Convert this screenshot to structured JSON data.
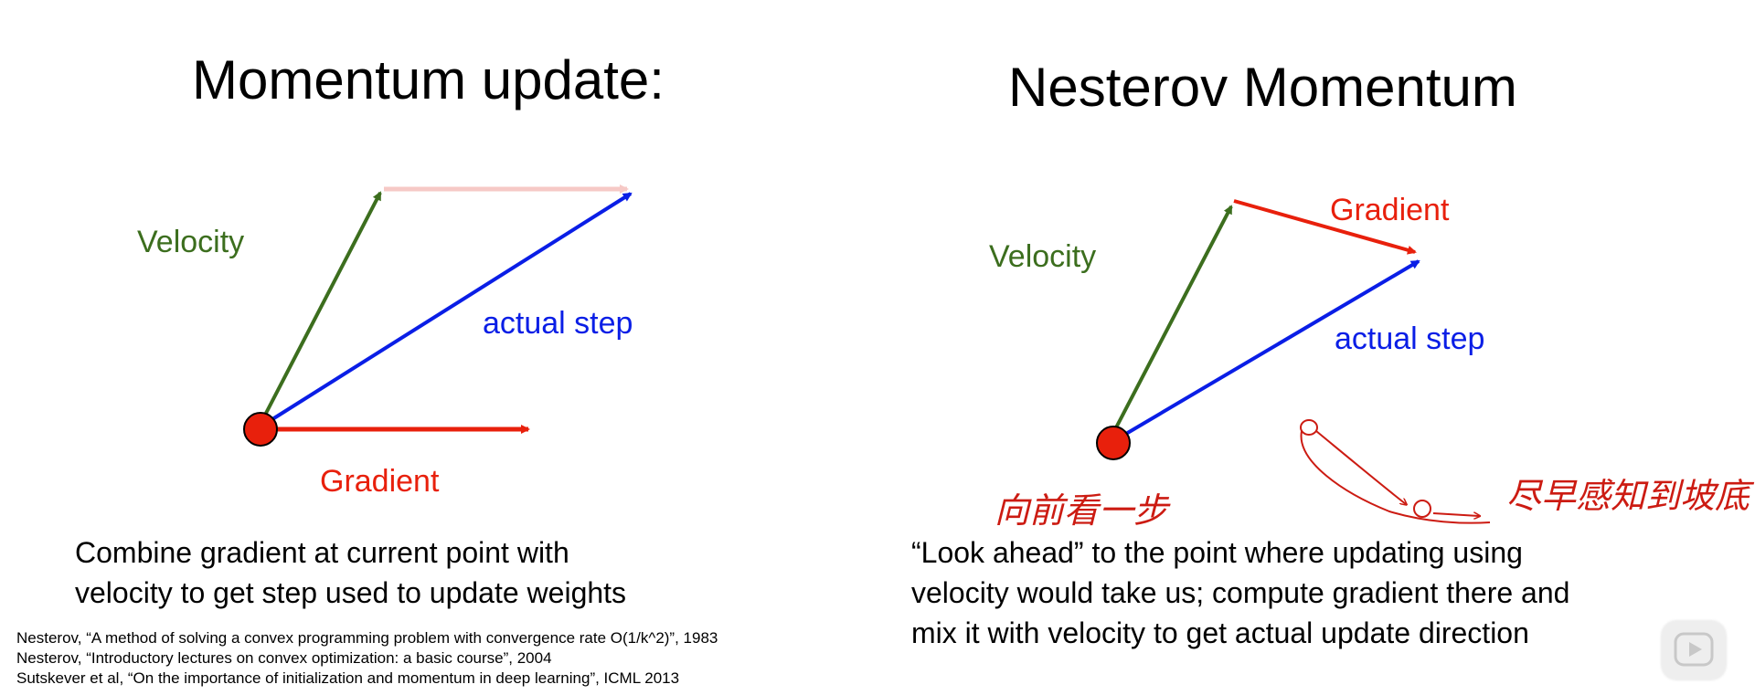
{
  "left": {
    "title": "Momentum update:",
    "velocity_label": "Velocity",
    "actual_step_label": "actual step",
    "gradient_label": "Gradient",
    "caption": [
      "Combine gradient at current point with",
      "velocity to get step used to update weights"
    ],
    "references": [
      "Nesterov, “A method of solving a convex programming problem with convergence rate O(1/k^2)”, 1983",
      "Nesterov, “Introductory lectures on convex optimization: a basic course”, 2004",
      "Sutskever et al, “On the importance of initialization and momentum in deep learning”, ICML 2013"
    ]
  },
  "right": {
    "title": "Nesterov Momentum",
    "velocity_label": "Velocity",
    "gradient_label": "Gradient",
    "actual_step_label": "actual step",
    "handwritten_look_ahead": "向前看一步",
    "handwritten_slope_bottom": "尽早感知到坡底",
    "caption": [
      "“Look ahead” to the point where updating using",
      "velocity would take us; compute gradient there and",
      "mix it with velocity to get actual update direction"
    ]
  },
  "colors": {
    "velocity": "#3c6e1e",
    "gradient": "#e8200c",
    "actual_step": "#0a1ee6",
    "faded_gradient": "#f6c9c6",
    "point_fill": "#e8200c",
    "handwriting": "#cc1b12"
  },
  "icons": {
    "play": "play-icon"
  }
}
